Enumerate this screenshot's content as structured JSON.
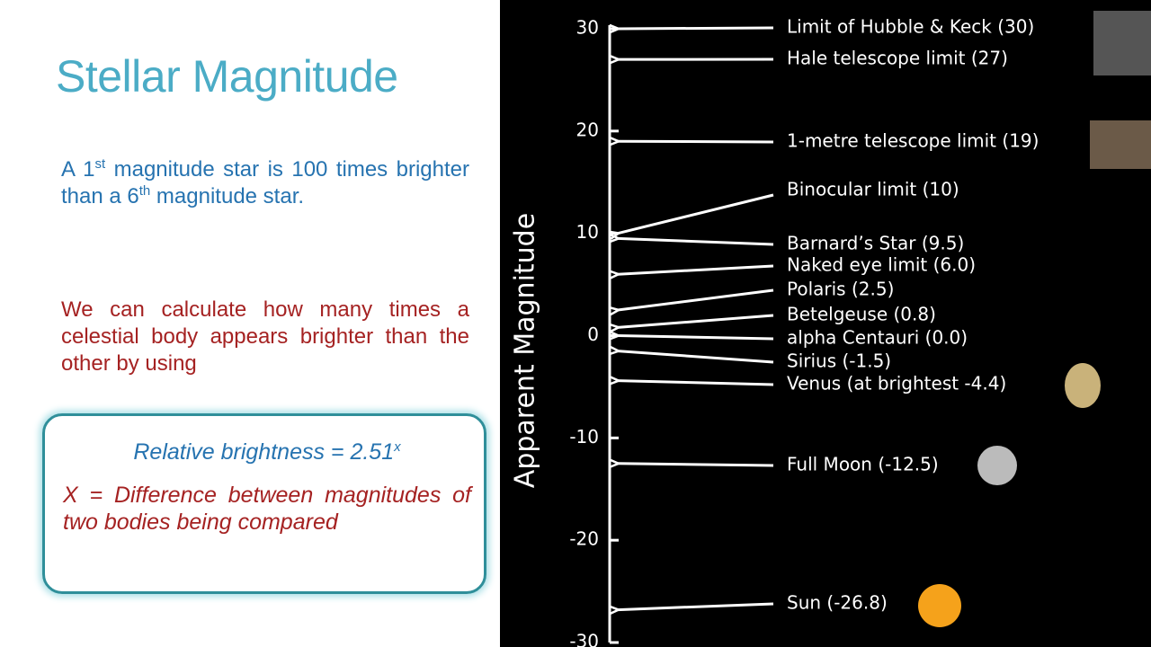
{
  "slide": {
    "title": "Stellar Magnitude",
    "paragraph1": [
      "A 1",
      "st",
      " magnitude star is 100 times brighter than a 6",
      "th",
      " magnitude star."
    ],
    "paragraph2": "We can calculate how many times a celestial body appears brighter than the other by using",
    "formula": [
      "Relative brightness = 2.51",
      "x"
    ],
    "definition": "X = Difference between magnitudes of two bodies being compared"
  },
  "scale": {
    "axis_label": "Apparent Magnitude",
    "ylim": [
      -30,
      30
    ],
    "yticks": [
      30,
      20,
      10,
      0,
      -10,
      -20,
      -30
    ],
    "markers": [
      {
        "label": "Limit of Hubble & Keck (30)",
        "value": 30
      },
      {
        "label": "Hale telescope limit (27)",
        "value": 27
      },
      {
        "label": "1-metre telescope limit (19)",
        "value": 19
      },
      {
        "label": "Binocular limit (10)",
        "value": 10
      },
      {
        "label": "Barnard’s Star (9.5)",
        "value": 9.5
      },
      {
        "label": "Naked eye limit (6.0)",
        "value": 6.0
      },
      {
        "label": "Polaris (2.5)",
        "value": 2.5
      },
      {
        "label": "Betelgeuse (0.8)",
        "value": 0.8
      },
      {
        "label": "alpha Centauri (0.0)",
        "value": 0.0
      },
      {
        "label": "Sirius (-1.5)",
        "value": -1.5
      },
      {
        "label": "Venus (at brightest -4.4)",
        "value": -4.4
      },
      {
        "label": "Full Moon (-12.5)",
        "value": -12.5
      },
      {
        "label": "Sun (-26.8)",
        "value": -26.8
      }
    ]
  }
}
